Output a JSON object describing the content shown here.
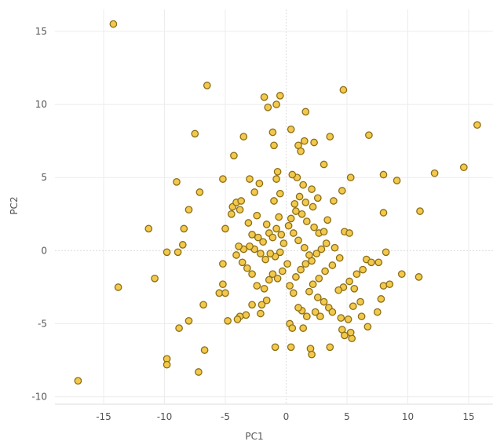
{
  "chart_data": {
    "type": "scatter",
    "xlabel": "PC1",
    "ylabel": "PC2",
    "xlim": [
      -19,
      17
    ],
    "ylim": [
      -10.5,
      16.5
    ],
    "x_ticks": [
      -15,
      -10,
      -5,
      0,
      5,
      10,
      15
    ],
    "y_ticks": [
      -10,
      -5,
      0,
      5,
      10,
      15
    ],
    "grid": true,
    "legend": "none",
    "colors": {
      "point_fill": "#f2c94c",
      "point_stroke": "#8c6d16",
      "grid": "#ececec"
    },
    "points": [
      [
        -14.2,
        15.5
      ],
      [
        -6.5,
        11.3
      ],
      [
        -7.5,
        8.0
      ],
      [
        -17.1,
        -8.9
      ],
      [
        -13.8,
        -2.5
      ],
      [
        -11.3,
        1.5
      ],
      [
        -10.8,
        -1.9
      ],
      [
        -9.8,
        -0.1
      ],
      [
        -8.9,
        -0.1
      ],
      [
        -8.5,
        0.4
      ],
      [
        -8.4,
        1.5
      ],
      [
        -8.0,
        2.8
      ],
      [
        -9.0,
        4.7
      ],
      [
        -7.1,
        4.0
      ],
      [
        -9.8,
        -7.4
      ],
      [
        -9.8,
        -7.8
      ],
      [
        -8.8,
        -5.3
      ],
      [
        -8.0,
        -4.8
      ],
      [
        -7.2,
        -8.3
      ],
      [
        -6.7,
        -6.8
      ],
      [
        -6.8,
        -3.7
      ],
      [
        -5.5,
        -2.9
      ],
      [
        -5.2,
        -2.3
      ],
      [
        -5.0,
        -2.9
      ],
      [
        -4.8,
        -4.8
      ],
      [
        -5.2,
        -0.9
      ],
      [
        -5.0,
        1.5
      ],
      [
        -5.2,
        4.9
      ],
      [
        -4.3,
        6.5
      ],
      [
        -4.5,
        2.5
      ],
      [
        -4.4,
        3.0
      ],
      [
        -4.1,
        3.3
      ],
      [
        -3.8,
        2.8
      ],
      [
        -3.7,
        3.4
      ],
      [
        -3.5,
        7.8
      ],
      [
        -3.0,
        4.9
      ],
      [
        -2.6,
        4.0
      ],
      [
        -2.2,
        4.6
      ],
      [
        -1.8,
        10.5
      ],
      [
        -1.5,
        9.8
      ],
      [
        -1.1,
        8.1
      ],
      [
        -1.0,
        7.2
      ],
      [
        -0.8,
        10.0
      ],
      [
        -0.5,
        10.6
      ],
      [
        -0.7,
        5.4
      ],
      [
        -0.8,
        4.9
      ],
      [
        -0.5,
        3.9
      ],
      [
        -1.0,
        3.4
      ],
      [
        -0.6,
        2.3
      ],
      [
        -1.6,
        1.8
      ],
      [
        -2.4,
        2.4
      ],
      [
        -3.1,
        1.9
      ],
      [
        -2.8,
        1.1
      ],
      [
        -2.3,
        0.9
      ],
      [
        -1.9,
        0.6
      ],
      [
        -1.4,
        1.2
      ],
      [
        -1.1,
        0.9
      ],
      [
        -0.8,
        1.5
      ],
      [
        -0.4,
        1.1
      ],
      [
        -0.2,
        0.5
      ],
      [
        -0.5,
        -0.1
      ],
      [
        -0.9,
        -0.4
      ],
      [
        -1.3,
        -0.2
      ],
      [
        -1.7,
        -0.6
      ],
      [
        -2.1,
        -0.2
      ],
      [
        -2.6,
        0.1
      ],
      [
        -3.0,
        0.3
      ],
      [
        -3.5,
        0.1
      ],
      [
        -3.9,
        0.3
      ],
      [
        -4.1,
        -0.3
      ],
      [
        -3.6,
        -0.8
      ],
      [
        -3.2,
        -1.2
      ],
      [
        -2.8,
        -1.6
      ],
      [
        -2.4,
        -2.4
      ],
      [
        -1.8,
        -2.6
      ],
      [
        -1.4,
        -2.0
      ],
      [
        -1.1,
        -1.6
      ],
      [
        -0.7,
        -1.9
      ],
      [
        -0.3,
        -1.4
      ],
      [
        0.1,
        -0.9
      ],
      [
        -1.6,
        -3.4
      ],
      [
        -2.0,
        -3.7
      ],
      [
        -2.8,
        -3.7
      ],
      [
        -3.3,
        -4.4
      ],
      [
        -3.8,
        -4.5
      ],
      [
        -4.0,
        -4.7
      ],
      [
        -2.1,
        -4.3
      ],
      [
        -0.9,
        -6.6
      ],
      [
        0.4,
        -6.6
      ],
      [
        0.3,
        -5.0
      ],
      [
        0.5,
        -5.3
      ],
      [
        1.4,
        -5.3
      ],
      [
        1.3,
        -4.1
      ],
      [
        1.0,
        -3.9
      ],
      [
        0.6,
        -2.9
      ],
      [
        0.3,
        -2.4
      ],
      [
        0.8,
        -1.8
      ],
      [
        1.2,
        -1.3
      ],
      [
        1.6,
        -0.9
      ],
      [
        2.1,
        -0.7
      ],
      [
        2.5,
        -0.2
      ],
      [
        2.9,
        0.1
      ],
      [
        3.3,
        0.5
      ],
      [
        2.7,
        1.2
      ],
      [
        2.3,
        1.6
      ],
      [
        1.7,
        2.0
      ],
      [
        1.3,
        2.5
      ],
      [
        0.8,
        2.7
      ],
      [
        0.4,
        2.2
      ],
      [
        0.2,
        1.7
      ],
      [
        0.6,
        1.2
      ],
      [
        1.0,
        0.7
      ],
      [
        1.5,
        0.2
      ],
      [
        1.9,
        -0.3
      ],
      [
        0.7,
        3.2
      ],
      [
        1.1,
        3.7
      ],
      [
        1.6,
        3.3
      ],
      [
        2.2,
        3.0
      ],
      [
        2.6,
        3.6
      ],
      [
        2.1,
        4.2
      ],
      [
        1.4,
        4.5
      ],
      [
        0.9,
        5.0
      ],
      [
        0.5,
        5.2
      ],
      [
        1.0,
        7.2
      ],
      [
        1.2,
        6.8
      ],
      [
        1.5,
        7.5
      ],
      [
        0.4,
        8.3
      ],
      [
        1.6,
        9.5
      ],
      [
        2.3,
        7.4
      ],
      [
        3.1,
        5.9
      ],
      [
        3.6,
        7.8
      ],
      [
        4.7,
        11.0
      ],
      [
        4.6,
        4.1
      ],
      [
        4.8,
        1.3
      ],
      [
        5.2,
        1.2
      ],
      [
        5.3,
        5.0
      ],
      [
        3.9,
        3.4
      ],
      [
        3.4,
        2.1
      ],
      [
        3.1,
        1.3
      ],
      [
        4.0,
        0.2
      ],
      [
        4.4,
        -0.5
      ],
      [
        3.8,
        -1.0
      ],
      [
        3.2,
        -1.4
      ],
      [
        2.7,
        -1.9
      ],
      [
        2.2,
        -2.3
      ],
      [
        1.9,
        -2.8
      ],
      [
        2.6,
        -3.2
      ],
      [
        3.1,
        -3.5
      ],
      [
        3.5,
        -3.9
      ],
      [
        3.8,
        -4.2
      ],
      [
        2.8,
        -4.5
      ],
      [
        2.4,
        -4.2
      ],
      [
        1.7,
        -4.5
      ],
      [
        2.0,
        -6.7
      ],
      [
        2.1,
        -7.1
      ],
      [
        3.6,
        -6.6
      ],
      [
        4.6,
        -5.4
      ],
      [
        4.8,
        -5.8
      ],
      [
        5.4,
        -6.0
      ],
      [
        5.3,
        -5.6
      ],
      [
        4.5,
        -4.6
      ],
      [
        5.1,
        -4.7
      ],
      [
        5.5,
        -3.8
      ],
      [
        6.2,
        -4.5
      ],
      [
        6.7,
        -5.2
      ],
      [
        6.1,
        -3.5
      ],
      [
        5.6,
        -2.6
      ],
      [
        5.2,
        -2.1
      ],
      [
        4.7,
        -2.5
      ],
      [
        4.3,
        -2.7
      ],
      [
        5.8,
        -1.6
      ],
      [
        6.3,
        -1.3
      ],
      [
        6.6,
        -0.6
      ],
      [
        7.0,
        -0.8
      ],
      [
        7.6,
        -0.8
      ],
      [
        8.2,
        -0.1
      ],
      [
        8.0,
        -2.4
      ],
      [
        8.5,
        -2.3
      ],
      [
        9.5,
        -1.6
      ],
      [
        7.8,
        -3.3
      ],
      [
        7.5,
        -4.2
      ],
      [
        10.9,
        -1.8
      ],
      [
        8.0,
        2.6
      ],
      [
        8.0,
        5.2
      ],
      [
        9.1,
        4.8
      ],
      [
        11.0,
        2.7
      ],
      [
        12.2,
        5.3
      ],
      [
        14.6,
        5.7
      ],
      [
        15.7,
        8.6
      ],
      [
        6.8,
        7.9
      ]
    ]
  }
}
